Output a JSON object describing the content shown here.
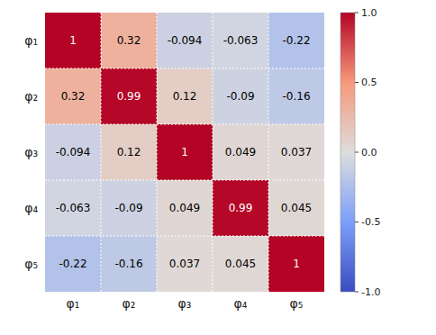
{
  "chart_data": {
    "type": "heatmap",
    "categories": [
      "φ₁",
      "φ₂",
      "φ₃",
      "φ₄",
      "φ₅"
    ],
    "values": [
      [
        1.0,
        0.32,
        -0.094,
        -0.063,
        -0.22
      ],
      [
        0.32,
        0.99,
        0.12,
        -0.09,
        -0.16
      ],
      [
        -0.094,
        0.12,
        1.0,
        0.049,
        0.037
      ],
      [
        -0.063,
        -0.09,
        0.049,
        0.99,
        0.045
      ],
      [
        -0.22,
        -0.16,
        0.037,
        0.045,
        1.0
      ]
    ],
    "value_labels": [
      [
        "1",
        "0.32",
        "-0.094",
        "-0.063",
        "-0.22"
      ],
      [
        "0.32",
        "0.99",
        "0.12",
        "-0.09",
        "-0.16"
      ],
      [
        "-0.094",
        "0.12",
        "1",
        "0.049",
        "0.037"
      ],
      [
        "-0.063",
        "-0.09",
        "0.049",
        "0.99",
        "0.045"
      ],
      [
        "-0.22",
        "-0.16",
        "0.037",
        "0.045",
        "1"
      ]
    ],
    "data_labels": true,
    "grid": true,
    "zlim": [
      -1.0,
      1.0
    ],
    "zticks": [
      {
        "value": 1.0,
        "label": "1.0"
      },
      {
        "value": 0.5,
        "label": "0.5"
      },
      {
        "value": 0.0,
        "label": "0.0"
      },
      {
        "value": -0.5,
        "label": "-0.5"
      },
      {
        "value": -1.0,
        "label": "-1.0"
      }
    ]
  }
}
